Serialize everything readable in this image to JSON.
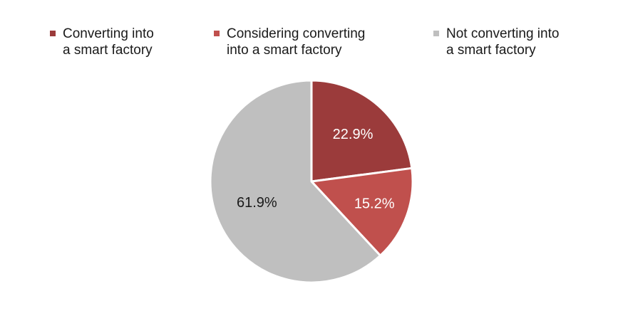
{
  "chart_data": {
    "type": "pie",
    "title": "",
    "series": [
      {
        "values": [
          22.9,
          15.2,
          61.9
        ]
      }
    ],
    "categories": [
      "Converting into\na smart factory",
      "Considering converting\ninto a smart factory",
      "Not converting into\na smart factory"
    ],
    "values": [
      22.9,
      15.2,
      61.9
    ],
    "value_labels": [
      "22.9%",
      "15.2%",
      "61.9%"
    ],
    "colors": [
      "#9b3b3b",
      "#c0504d",
      "#bfbfbf"
    ],
    "label_colors": [
      "#ffffff",
      "#ffffff",
      "#1a1a1a"
    ],
    "legend_position": "top",
    "start_angle_deg": 0,
    "direction": "clockwise"
  }
}
